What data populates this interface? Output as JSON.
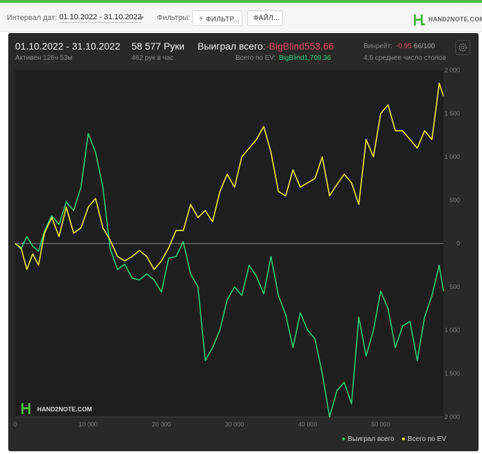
{
  "filters": {
    "date_label": "Интервал дат:",
    "date_range": "01.10.2022 - 31.10.2022",
    "filters_label": "Фильтры:",
    "filter_button": "ФИЛЬТР...",
    "file_button": "ФАЙЛ...",
    "logo_text": "HAND2NOTE.COM"
  },
  "summary": {
    "period": "01.10.2022 - 31.10.2022",
    "active": "Активен 126ч 53м",
    "hands": "58 577 Руки",
    "hands_per_hour": "462 рук в час",
    "won_label": "Выиграл всего:",
    "won_value": "-BigBlind553.66",
    "ev_label": "Всего по EV:",
    "ev_value": "BigBlind1,709.36",
    "winrate_label": "Винрейт:",
    "winrate_value": "-0.95",
    "winrate_suffix": "66/100",
    "tables": "4.6 среднее число столов",
    "watermark": "HAND2NOTE.COM"
  },
  "colors": {
    "won": "#2fcf78",
    "ev": "#f3f33c",
    "negative": "#e2466b",
    "brand": "#4aba43"
  },
  "chart_data": {
    "type": "line",
    "xlim": [
      0,
      58577
    ],
    "ylim": [
      -2000,
      2000
    ],
    "x_ticks": [
      0,
      10000,
      20000,
      30000,
      40000,
      50000
    ],
    "x_tick_labels": [
      "0",
      "10 000",
      "20 000",
      "30 000",
      "40 000",
      "50 000"
    ],
    "y_ticks": [
      2000,
      1500,
      1000,
      500,
      0,
      -500,
      -1000,
      -1500,
      -2000
    ],
    "y_tick_labels": [
      "2 000",
      "1 500",
      "1 000",
      "500",
      "0",
      "500",
      "1 000",
      "1 500",
      "2 000"
    ],
    "grid": false,
    "legend_position": "bottom-right",
    "series": [
      {
        "name": "Выиграл всего",
        "x": [
          0,
          800,
          1600,
          2400,
          3200,
          4000,
          5000,
          6000,
          7000,
          8000,
          9000,
          10000,
          11000,
          12000,
          13000,
          14000,
          15000,
          16000,
          17000,
          18000,
          19000,
          20000,
          21000,
          22000,
          23000,
          24000,
          25000,
          26000,
          27000,
          28000,
          29000,
          30000,
          31000,
          32000,
          33000,
          34000,
          35000,
          36000,
          37000,
          38000,
          39000,
          40000,
          41000,
          42000,
          43000,
          44000,
          45000,
          46000,
          47000,
          48000,
          49000,
          50000,
          51000,
          52000,
          53000,
          54000,
          55000,
          56000,
          57000,
          58000,
          58577
        ],
        "y": [
          0,
          -60,
          80,
          -30,
          -90,
          140,
          320,
          220,
          480,
          380,
          650,
          1270,
          1050,
          650,
          -60,
          -300,
          -240,
          -400,
          -420,
          -350,
          -420,
          -560,
          -170,
          -150,
          20,
          -350,
          -500,
          -1350,
          -1200,
          -1000,
          -650,
          -500,
          -600,
          -250,
          -380,
          -580,
          -150,
          -600,
          -820,
          -1200,
          -800,
          -1000,
          -1100,
          -1500,
          -2000,
          -1700,
          -1600,
          -1850,
          -850,
          -1300,
          -1000,
          -550,
          -750,
          -1200,
          -950,
          -900,
          -1350,
          -850,
          -600,
          -250,
          -550
        ]
      },
      {
        "name": "Всего по EV",
        "x": [
          0,
          800,
          1600,
          2400,
          3200,
          4000,
          5000,
          6000,
          7000,
          8000,
          9000,
          10000,
          11000,
          12000,
          13000,
          14000,
          15000,
          16000,
          17000,
          18000,
          19000,
          20000,
          21000,
          22000,
          23000,
          24000,
          25000,
          26000,
          27000,
          28000,
          29000,
          30000,
          31000,
          32000,
          33000,
          34000,
          35000,
          36000,
          37000,
          38000,
          39000,
          40000,
          41000,
          42000,
          43000,
          44000,
          45000,
          46000,
          47000,
          48000,
          49000,
          50000,
          51000,
          52000,
          53000,
          54000,
          55000,
          56000,
          57000,
          58000,
          58577
        ],
        "y": [
          0,
          -50,
          -300,
          -120,
          -250,
          120,
          300,
          80,
          420,
          120,
          180,
          420,
          520,
          180,
          40,
          -150,
          -200,
          -150,
          -80,
          -150,
          -300,
          -200,
          -50,
          150,
          150,
          450,
          300,
          380,
          250,
          600,
          800,
          650,
          1000,
          1100,
          1200,
          1350,
          1050,
          600,
          550,
          850,
          650,
          700,
          750,
          1000,
          550,
          680,
          800,
          700,
          450,
          1200,
          1000,
          1500,
          1600,
          1300,
          1300,
          1200,
          1100,
          1300,
          1200,
          1850,
          1700
        ]
      }
    ]
  }
}
